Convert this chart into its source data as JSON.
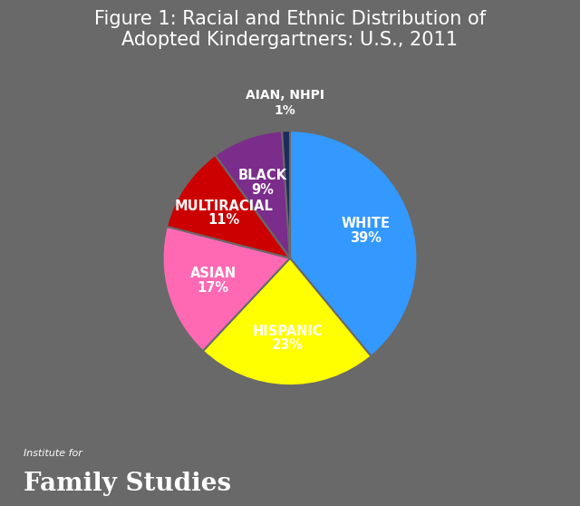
{
  "title": "Figure 1: Racial and Ethnic Distribution of\nAdopted Kindergartners: U.S., 2011",
  "slices": [
    {
      "label": "WHITE",
      "pct": 39,
      "color": "#3399FF"
    },
    {
      "label": "HISPANIC",
      "pct": 23,
      "color": "#FFFF00"
    },
    {
      "label": "ASIAN",
      "pct": 17,
      "color": "#FF69B4"
    },
    {
      "label": "MULTIRACIAL",
      "pct": 11,
      "color": "#CC0000"
    },
    {
      "label": "BLACK",
      "pct": 9,
      "color": "#7B2D8B"
    },
    {
      "label": "AIAN, NHPI",
      "pct": 1,
      "color": "#1C2B5E"
    }
  ],
  "background_color": "#696969",
  "title_color": "#FFFFFF",
  "label_color": "#FFFFFF",
  "title_fontsize": 15,
  "label_fontsize": 10.5,
  "pct_fontsize": 10.5,
  "watermark_top": "Institute for",
  "watermark_bottom": "Family Studies",
  "watermark_color_top": "#FFFFFF",
  "watermark_color_bottom": "#FFFFFF",
  "label_ha": [
    "left",
    "center",
    "left",
    "left",
    "center",
    "center"
  ],
  "aian_outside": true
}
